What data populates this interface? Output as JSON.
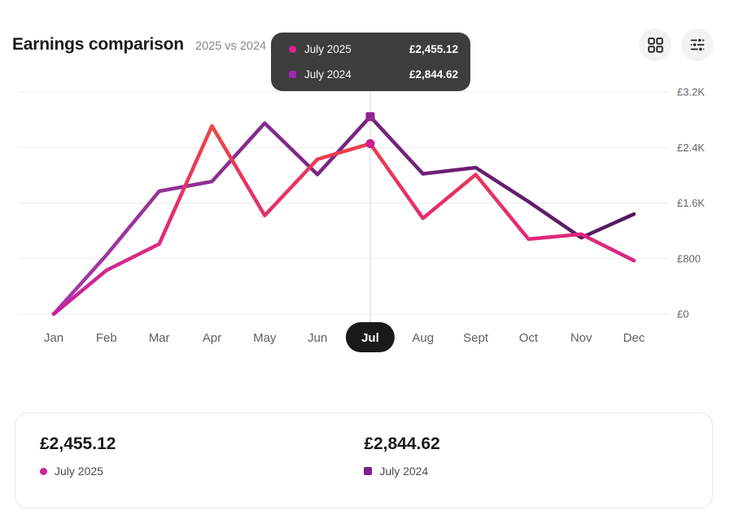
{
  "header": {
    "title": "Earnings comparison",
    "subtitle": "2025 vs 2024",
    "actions": [
      {
        "icon": "grid-icon",
        "label": "grid view"
      },
      {
        "icon": "sliders-icon",
        "label": "filters"
      }
    ]
  },
  "tooltip": {
    "rows": [
      {
        "label": "July 2025",
        "value": "£2,455.12",
        "marker": "circle",
        "color": "#e0218a"
      },
      {
        "label": "July 2024",
        "value": "£2,844.62",
        "marker": "square",
        "color": "#9c27b0"
      }
    ]
  },
  "chart_data": {
    "type": "line",
    "title": "Earnings comparison",
    "categories": [
      "Jan",
      "Feb",
      "Mar",
      "Apr",
      "May",
      "Jun",
      "Jul",
      "Aug",
      "Sept",
      "Oct",
      "Nov",
      "Dec"
    ],
    "selected_category": "Jul",
    "selected_index": 6,
    "series": [
      {
        "name": "July 2025",
        "gradient": [
          "#f2573a",
          "#ea3b51",
          "#e52878",
          "#c124a2"
        ],
        "gradient_direction": "vertical",
        "marker": "circle",
        "marker_color": "#ca2093",
        "values": [
          0,
          630,
          1010,
          2710,
          1420,
          2230,
          2455.12,
          1380,
          2010,
          1080,
          1150,
          770
        ]
      },
      {
        "name": "July 2024",
        "gradient": [
          "#a83aa8",
          "#7c2685",
          "#6b2173",
          "#521a5f"
        ],
        "gradient_direction": "horizontal",
        "marker": "square",
        "marker_color": "#8f2590",
        "values": [
          0,
          850,
          1770,
          1910,
          2750,
          2010,
          2844.62,
          2020,
          2110,
          1620,
          1100,
          1440
        ]
      }
    ],
    "ylim": [
      0,
      3200
    ],
    "y_ticks": [
      0,
      800,
      1600,
      2400,
      3200
    ],
    "y_tick_labels": [
      "£0",
      "£800",
      "£1.6K",
      "£2.4K",
      "£3.2K"
    ],
    "grid": "horizontal-only",
    "legend_position": "bottom-card",
    "selected_pill": {
      "bg": "#1a1a1a",
      "text_color": "#ffffff"
    }
  },
  "summary": {
    "cards": [
      {
        "value": "£2,455.12",
        "label": "July 2025",
        "marker": "circle",
        "color": "#d6219c"
      },
      {
        "value": "£2,844.62",
        "label": "July 2024",
        "marker": "square",
        "color": "#7b1f8a"
      }
    ]
  }
}
